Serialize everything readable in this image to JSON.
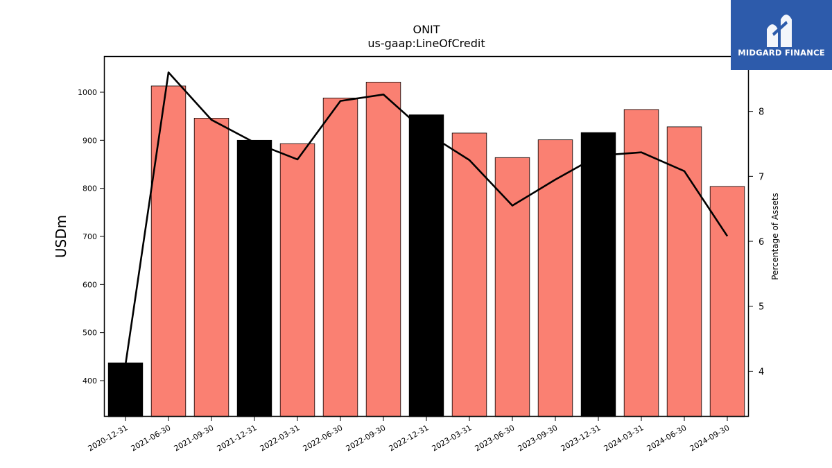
{
  "chart_data": {
    "type": "bar",
    "title": "ONIT",
    "subtitle": "us-gaap:LineOfCredit",
    "ylabel": "USDm",
    "y2label": "Percentage of Assets",
    "categories": [
      "2020-12-31",
      "2021-06-30",
      "2021-09-30",
      "2021-12-31",
      "2022-03-31",
      "2022-06-30",
      "2022-09-30",
      "2022-12-31",
      "2023-03-31",
      "2023-06-30",
      "2023-09-30",
      "2023-12-31",
      "2024-03-31",
      "2024-06-30",
      "2024-09-30"
    ],
    "series": [
      {
        "type": "bar",
        "values": [
          437,
          1013,
          946,
          900,
          893,
          988,
          1021,
          953,
          915,
          864,
          901,
          916,
          964,
          928,
          804
        ],
        "colors": [
          "#000000",
          "#fa8072",
          "#fa8072",
          "#000000",
          "#fa8072",
          "#fa8072",
          "#fa8072",
          "#000000",
          "#fa8072",
          "#fa8072",
          "#fa8072",
          "#000000",
          "#fa8072",
          "#fa8072",
          "#fa8072"
        ]
      },
      {
        "type": "line",
        "axis": "right",
        "color": "#000000",
        "values": [
          4.1,
          8.6,
          7.87,
          7.52,
          7.26,
          8.16,
          8.26,
          7.67,
          7.25,
          6.55,
          6.95,
          7.32,
          7.37,
          7.08,
          6.08
        ]
      }
    ],
    "ylim": [
      325,
      1075
    ],
    "y2lim": [
      3.3,
      8.85
    ],
    "yticks": [
      400,
      500,
      600,
      700,
      800,
      900,
      1000
    ],
    "y2ticks": [
      4,
      5,
      6,
      7,
      8
    ],
    "grid": false,
    "legend": "none"
  },
  "logo": {
    "text": "MIDGARD FINANCE"
  }
}
